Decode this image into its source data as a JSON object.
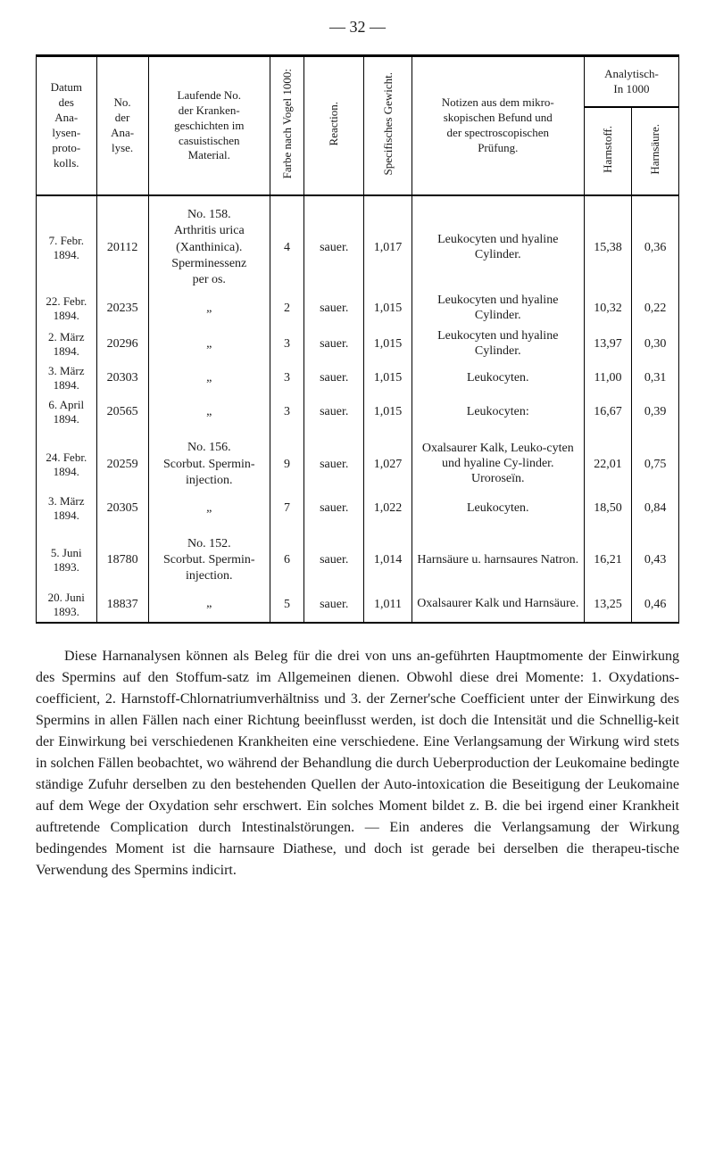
{
  "page_number": "— 32 —",
  "table": {
    "headers": {
      "datum": "Datum\ndes\nAna-\nlysen-\nproto-\nkolls.",
      "no": "No.\nder\nAna-\nlyse.",
      "laufende": "Laufende No.\nder Kranken-\ngeschichten im\ncasuistischen\nMaterial.",
      "farbe": "Farbe nach Vogel 1000:",
      "reaction": "Reaction.",
      "specifisches": "Specifisches Gewicht.",
      "notizen": "Notizen aus dem mikro-\nskopischen Befund und\nder spectroscopischen\nPrüfung.",
      "analytisch": "Analytisch-\nIn 1000",
      "harnstoff": "Harnstoff.",
      "harnsaure": "Harnsäure."
    },
    "sections": [
      {
        "material_header": "No. 158.",
        "rows": [
          {
            "datum": "7. Febr.\n1894.",
            "no": "20112",
            "material": "Arthritis urica\n(Xanthinica).\nSperminessenz\nper os.",
            "farbe": "4",
            "reaction": "sauer.",
            "specif": "1,017",
            "notizen": "Leukocyten und hyaline Cylinder.",
            "harnstoff": "15,38",
            "harnsaure": "0,36"
          },
          {
            "datum": "22. Febr.\n1894.",
            "no": "20235",
            "material": "„",
            "farbe": "2",
            "reaction": "sauer.",
            "specif": "1,015",
            "notizen": "Leukocyten und hyaline Cylinder.",
            "harnstoff": "10,32",
            "harnsaure": "0,22"
          },
          {
            "datum": "2. März\n1894.",
            "no": "20296",
            "material": "„",
            "farbe": "3",
            "reaction": "sauer.",
            "specif": "1,015",
            "notizen": "Leukocyten und hyaline Cylinder.",
            "harnstoff": "13,97",
            "harnsaure": "0,30"
          },
          {
            "datum": "3. März\n1894.",
            "no": "20303",
            "material": "„",
            "farbe": "3",
            "reaction": "sauer.",
            "specif": "1,015",
            "notizen": "Leukocyten.",
            "harnstoff": "11,00",
            "harnsaure": "0,31"
          },
          {
            "datum": "6. April\n1894.",
            "no": "20565",
            "material": "„",
            "farbe": "3",
            "reaction": "sauer.",
            "specif": "1,015",
            "notizen": "Leukocyten:",
            "harnstoff": "16,67",
            "harnsaure": "0,39"
          }
        ]
      },
      {
        "material_header": "No. 156.",
        "rows": [
          {
            "datum": "24. Febr.\n1894.",
            "no": "20259",
            "material": "Scorbut. Spermin-\ninjection.",
            "farbe": "9",
            "reaction": "sauer.",
            "specif": "1,027",
            "notizen": "Oxalsaurer Kalk, Leuko-cyten und hyaline Cy-linder. Uroroseïn.",
            "harnstoff": "22,01",
            "harnsaure": "0,75"
          },
          {
            "datum": "3. März\n1894.",
            "no": "20305",
            "material": "„",
            "farbe": "7",
            "reaction": "sauer.",
            "specif": "1,022",
            "notizen": "Leukocyten.",
            "harnstoff": "18,50",
            "harnsaure": "0,84"
          }
        ]
      },
      {
        "material_header": "No. 152.",
        "rows": [
          {
            "datum": "5. Juni\n1893.",
            "no": "18780",
            "material": "Scorbut. Spermin-\ninjection.",
            "farbe": "6",
            "reaction": "sauer.",
            "specif": "1,014",
            "notizen": "Harnsäure u. harnsaures Natron.",
            "harnstoff": "16,21",
            "harnsaure": "0,43"
          },
          {
            "datum": "20. Juni\n1893.",
            "no": "18837",
            "material": "„",
            "farbe": "5",
            "reaction": "sauer.",
            "specif": "1,011",
            "notizen": "Oxalsaurer Kalk und Harnsäure.",
            "harnstoff": "13,25",
            "harnsaure": "0,46"
          }
        ]
      }
    ]
  },
  "body_paragraph": "Diese Harnanalysen können als Beleg für die drei von uns an-geführten Hauptmomente der Einwirkung des Spermins auf den Stoffum-satz im Allgemeinen dienen. Obwohl diese drei Momente: 1. Oxydations-coefficient, 2. Harnstoff-Chlornatriumverhältniss und 3. der Zerner'sche Coefficient unter der Einwirkung des Spermins in allen Fällen nach einer Richtung beeinflusst werden, ist doch die Intensität und die Schnellig-keit der Einwirkung bei verschiedenen Krankheiten eine verschiedene. Eine Verlangsamung der Wirkung wird stets in solchen Fällen beobachtet, wo während der Behandlung die durch Ueberproduction der Leukomaine bedingte ständige Zufuhr derselben zu den bestehenden Quellen der Auto-intoxication die Beseitigung der Leukomaine auf dem Wege der Oxydation sehr erschwert. Ein solches Moment bildet z. B. die bei irgend einer Krankheit auftretende Complication durch Intestinalstörungen. — Ein anderes die Verlangsamung der Wirkung bedingendes Moment ist die harnsaure Diathese, und doch ist gerade bei derselben die therapeu-tische Verwendung des Spermins indicirt."
}
